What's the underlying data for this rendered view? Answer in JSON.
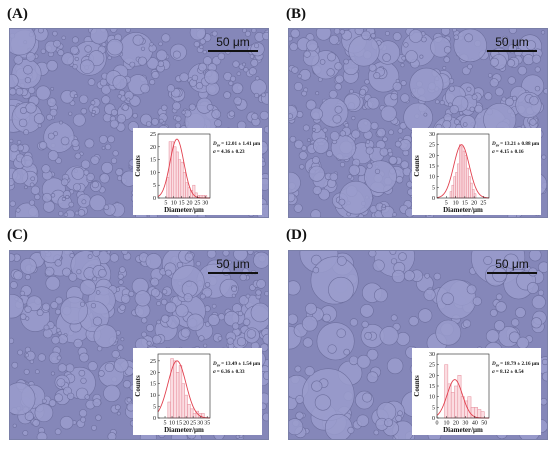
{
  "scale_bar_label": "50 μm",
  "colors": {
    "micrograph_bg": "#8587b9",
    "droplet_fill": "#9a9ccd",
    "droplet_edge": "#6d6f9e",
    "bar_fill": "#fbdde2",
    "bar_stroke": "#e58a98",
    "fit_curve": "#e2414f"
  },
  "panels": [
    {
      "label": "(A)",
      "droplet_scale": 1.0,
      "stats": {
        "dav_value": "= 12.01 ± 1.41 μm",
        "sigma_value": "= 4.36 ± 0.23"
      },
      "chart_data": {
        "type": "bar",
        "xlabel": "Diameter/μm",
        "ylabel": "Counts",
        "xlim": [
          0,
          33
        ],
        "ylim": [
          0,
          25
        ],
        "xticks": [
          5,
          10,
          15,
          20,
          25,
          30
        ],
        "yticks": [
          0,
          5,
          10,
          15,
          20,
          25
        ],
        "bin_width": 1.5,
        "bins_start": [
          5.5,
          7,
          8.5,
          10,
          11.5,
          13,
          14.5,
          16,
          17.5,
          19,
          20.5,
          22,
          23.5,
          25,
          26.5,
          28,
          29.5
        ],
        "values": [
          8,
          22,
          22,
          20,
          18,
          15,
          14,
          10,
          6,
          4,
          3,
          5,
          2,
          1,
          1,
          1,
          1
        ],
        "fit": {
          "type": "gaussian",
          "mean": 12.0,
          "sigma": 4.4,
          "peak": 23
        }
      }
    },
    {
      "label": "(B)",
      "droplet_scale": 1.0,
      "stats": {
        "dav_value": "= 13.21 ± 0.88 μm",
        "sigma_value": "= 4.15 ± 0.16"
      },
      "chart_data": {
        "type": "bar",
        "xlabel": "Diameter/μm",
        "ylabel": "Counts",
        "xlim": [
          0,
          28
        ],
        "ylim": [
          0,
          30
        ],
        "xticks": [
          5,
          10,
          15,
          20,
          25
        ],
        "yticks": [
          0,
          5,
          10,
          15,
          20,
          25,
          30
        ],
        "bin_width": 1.0,
        "bins_start": [
          7,
          8,
          9,
          10,
          11,
          12,
          13,
          14,
          15,
          16,
          17,
          18,
          19,
          20
        ],
        "values": [
          3,
          6,
          10,
          12,
          16,
          25,
          24,
          22,
          20,
          14,
          10,
          7,
          4,
          2
        ],
        "fit": {
          "type": "gaussian",
          "mean": 13.2,
          "sigma": 4.2,
          "peak": 25
        }
      }
    },
    {
      "label": "(C)",
      "droplet_scale": 1.05,
      "stats": {
        "dav_value": "= 13.49 ± 1.54 μm",
        "sigma_value": "= 6.36 ± 0.33"
      },
      "chart_data": {
        "type": "bar",
        "xlabel": "Diameter/μm",
        "ylabel": "Counts",
        "xlim": [
          0,
          37
        ],
        "ylim": [
          0,
          28
        ],
        "xticks": [
          5,
          10,
          15,
          20,
          25,
          30,
          35
        ],
        "yticks": [
          0,
          5,
          10,
          15,
          20,
          25
        ],
        "bin_width": 2.0,
        "bins_start": [
          7,
          9,
          11,
          13,
          15,
          17,
          19,
          21,
          23,
          25,
          27,
          29,
          31
        ],
        "values": [
          7,
          26,
          25,
          20,
          23,
          15,
          10,
          6,
          4,
          2,
          3,
          2,
          2
        ],
        "fit": {
          "type": "gaussian",
          "mean": 13.5,
          "sigma": 6.4,
          "peak": 25
        }
      }
    },
    {
      "label": "(D)",
      "droplet_scale": 1.6,
      "stats": {
        "dav_value": "= 18.79 ± 2.16 μm",
        "sigma_value": "= 8.12 ± 0.54"
      },
      "chart_data": {
        "type": "bar",
        "xlabel": "Diameter/μm",
        "ylabel": "Counts",
        "xlim": [
          0,
          55
        ],
        "ylim": [
          0,
          30
        ],
        "xticks": [
          0,
          10,
          20,
          30,
          40,
          50
        ],
        "yticks": [
          0,
          5,
          10,
          15,
          20,
          25,
          30
        ],
        "bin_width": 3.5,
        "bins_start": [
          8,
          11.5,
          15,
          18.5,
          22,
          25.5,
          29,
          32.5,
          36,
          39.5,
          43,
          46.5
        ],
        "values": [
          25,
          16,
          12,
          15,
          20,
          10,
          8,
          10,
          5,
          5,
          4,
          3
        ],
        "fit": {
          "type": "gaussian",
          "mean": 18.8,
          "sigma": 8.1,
          "peak": 18
        }
      }
    }
  ]
}
